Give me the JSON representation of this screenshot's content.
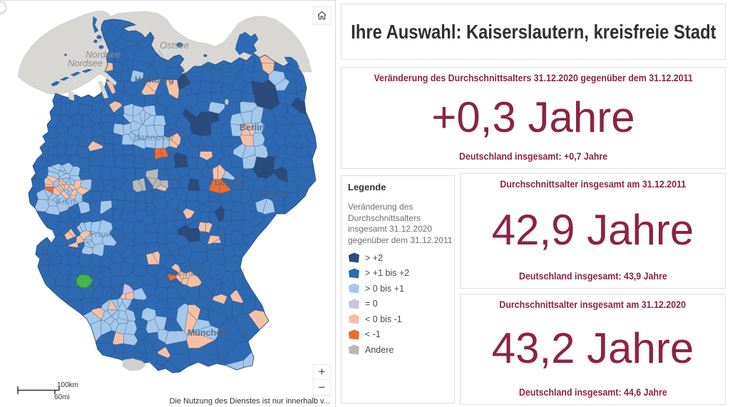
{
  "selection": {
    "title": "Ihre Auswahl: Kaiserslautern, kreisfreie Stadt"
  },
  "panels": {
    "change": {
      "header": "Veränderung des Durchschnittsalters 31.12.2020 gegenüber dem 31.12.2011",
      "value": "+0,3 Jahre",
      "footer": "Deutschland insgesamt: +0,7 Jahre"
    },
    "avg2011": {
      "header": "Durchschnittsalter insgesamt am 31.12.2011",
      "value": "42,9 Jahre",
      "footer": "Deutschland insgesamt: 43,9 Jahre"
    },
    "avg2020": {
      "header": "Durchschnittsalter insgesamt am 31.12.2020",
      "value": "43,2 Jahre",
      "footer": "Deutschland insgesamt: 44,6 Jahre"
    }
  },
  "legend": {
    "title": "Legende",
    "description_lines": [
      "Veränderung des",
      "Durchschnittsalters",
      "insgesamt 31.12.2020",
      "gegenüber dem 31.12.2011"
    ],
    "items": [
      {
        "label": "> +2",
        "color": "#2b4b7d"
      },
      {
        "label": "> +1 bis +2",
        "color": "#2e69b1"
      },
      {
        "label": "> 0 bis +1",
        "color": "#a4c8ec"
      },
      {
        "label": "= 0",
        "color": "#cbc3e2"
      },
      {
        "label": "< 0 bis -1",
        "color": "#f6c0a4"
      },
      {
        "label": "< -1",
        "color": "#ed6c30"
      },
      {
        "label": "Andere",
        "color": "#b9b9b9"
      }
    ]
  },
  "map": {
    "sea_labels": [
      {
        "text": "Ostsee"
      },
      {
        "text": "Nordsee"
      },
      {
        "text": "Nordsee"
      }
    ],
    "city_labels": [
      {
        "text": "Hamburg"
      },
      {
        "text": "Hannover"
      },
      {
        "text": "Berlin"
      },
      {
        "text": "Leipzig"
      },
      {
        "text": "Dresden"
      },
      {
        "text": "Frankfurt"
      },
      {
        "text": "Nürnberg"
      },
      {
        "text": "München"
      },
      {
        "text": "Köln"
      }
    ],
    "scalebar": {
      "km": "100km",
      "mi": "60mi"
    },
    "attribution": "Die Nutzung des Dienstes ist nur innerhalb v...",
    "controls": {
      "zoom_in": "+",
      "zoom_out": "−"
    },
    "selected_region_color": "#45b64a",
    "accent_color": "#8c2342"
  }
}
